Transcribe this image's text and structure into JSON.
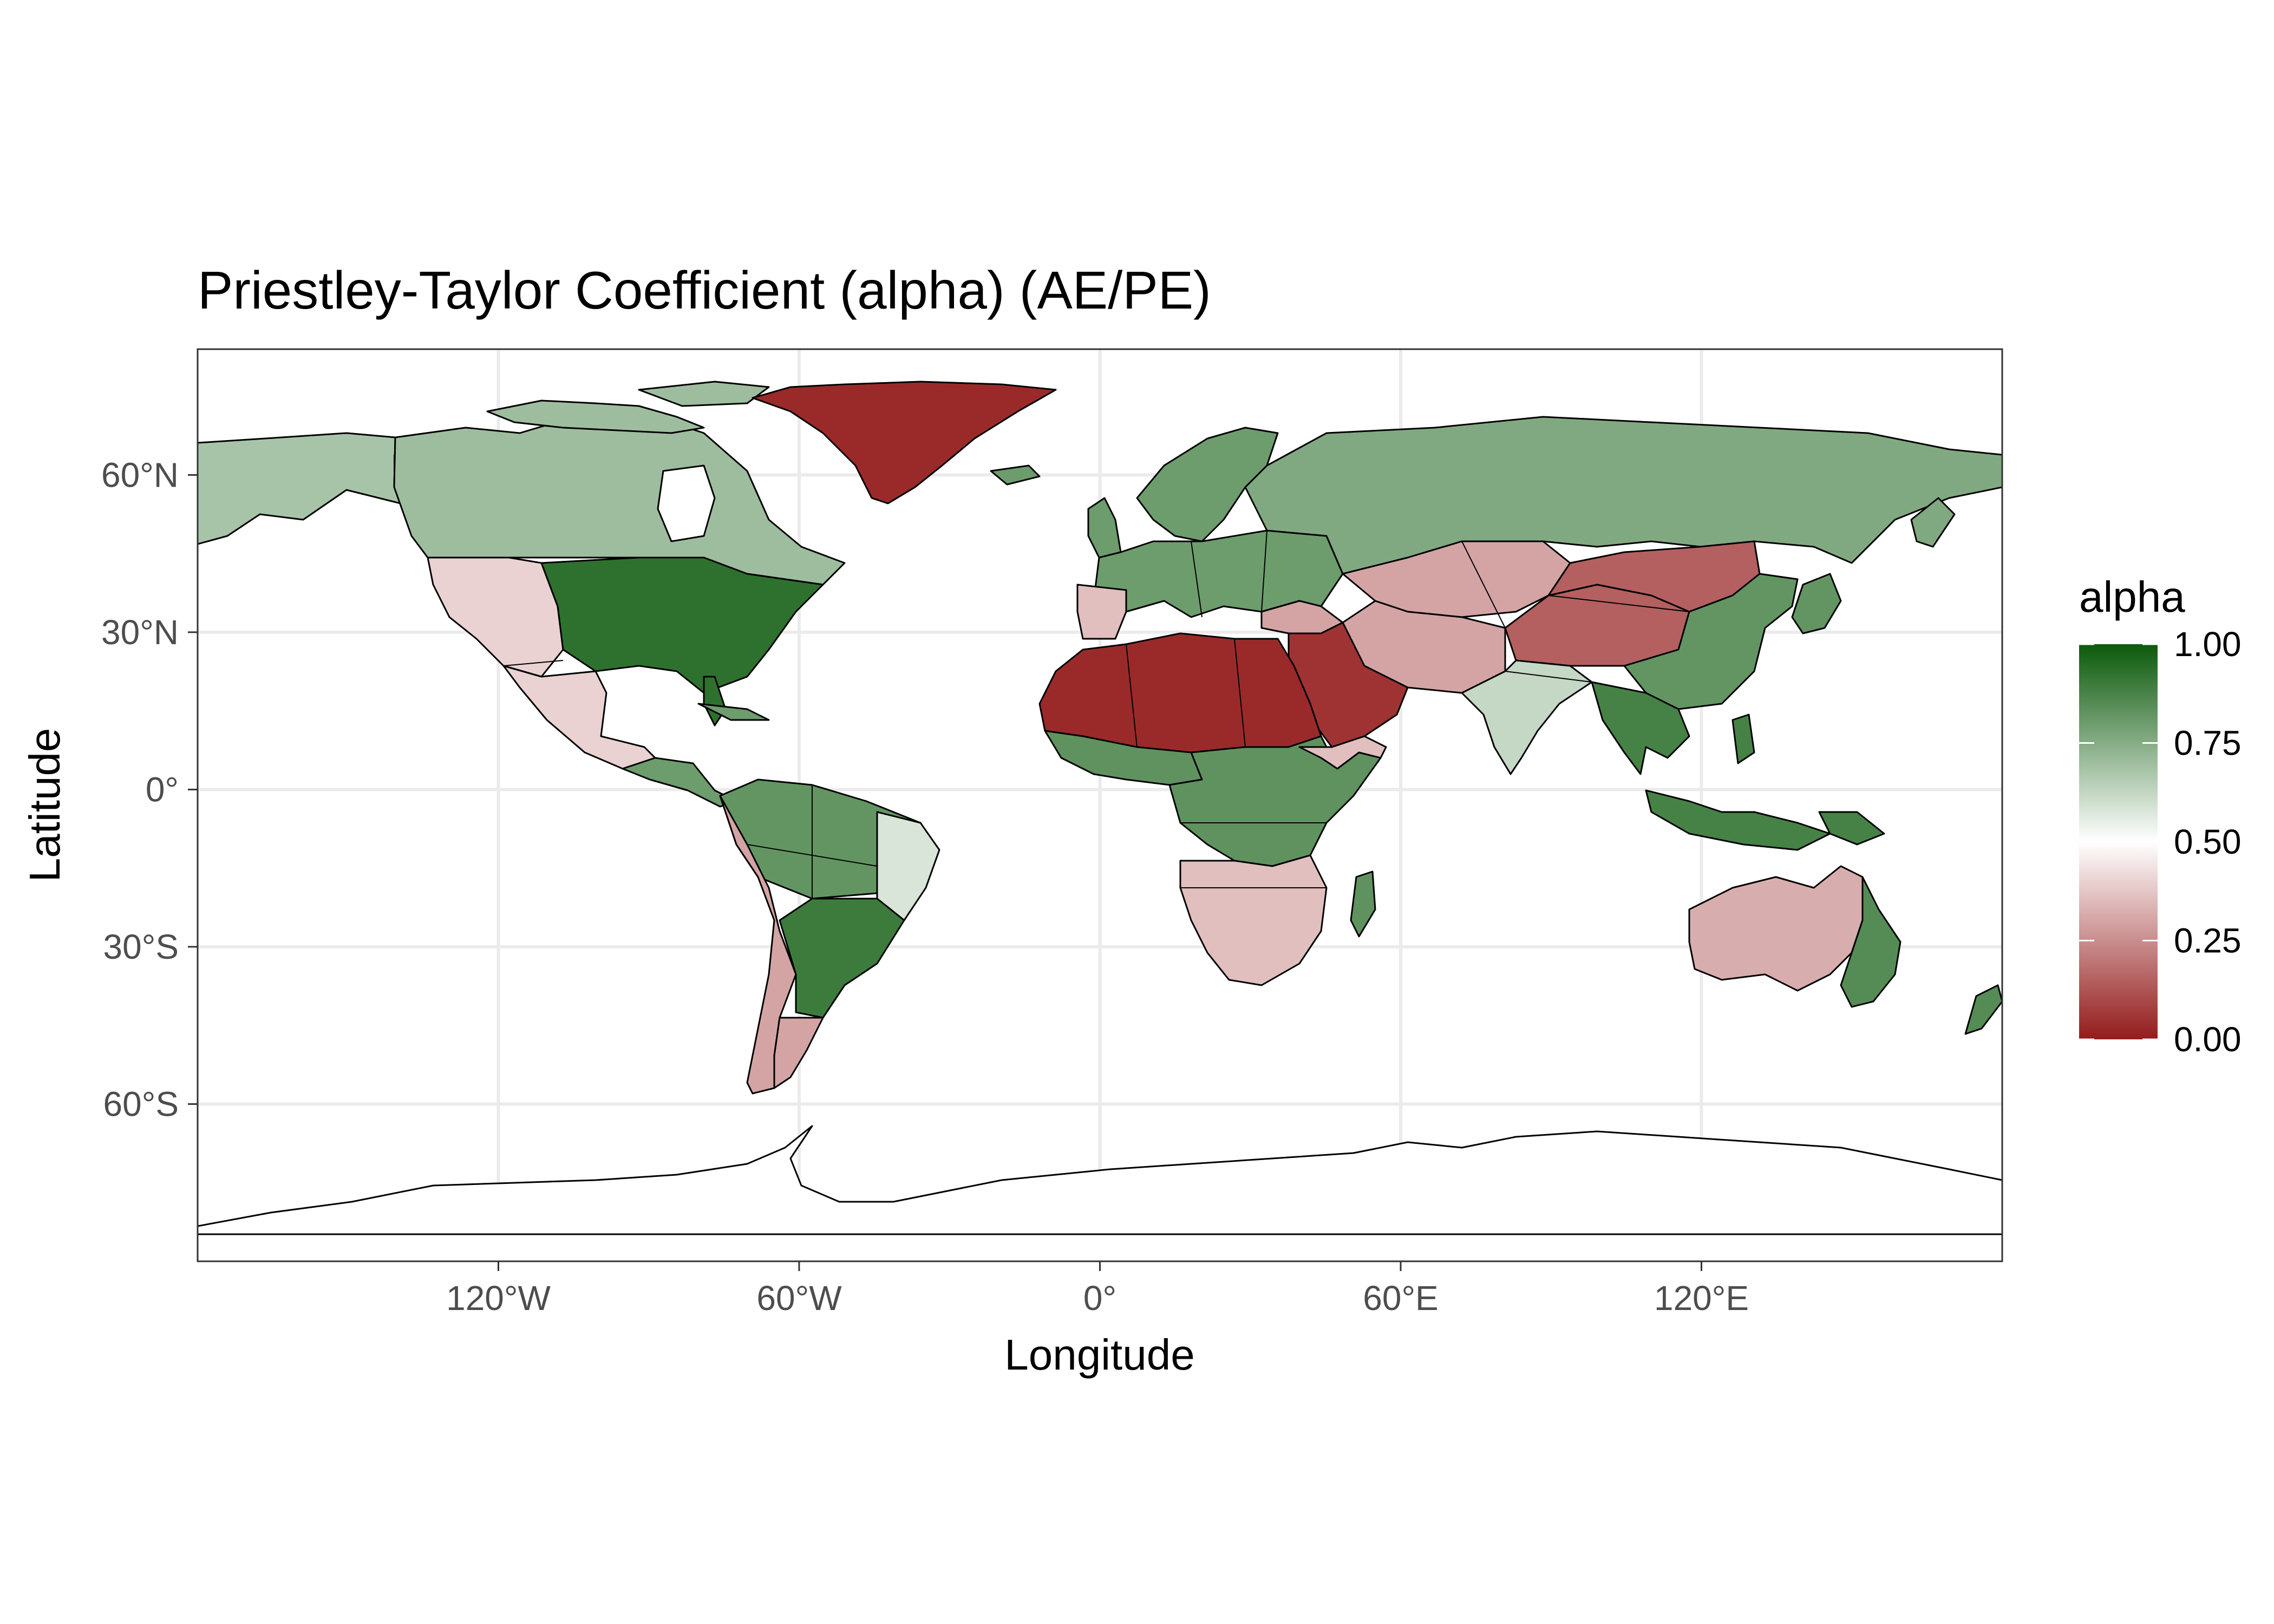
{
  "chart_data": {
    "type": "heatmap",
    "title": "Priestley-Taylor Coefficient (alpha) (AE/PE)",
    "xlabel": "Longitude",
    "ylabel": "Latitude",
    "xlim": [
      -180,
      180
    ],
    "ylim": [
      -90,
      84
    ],
    "x_ticks": [
      {
        "value": -120,
        "label": "120°W"
      },
      {
        "value": -60,
        "label": "60°W"
      },
      {
        "value": 0,
        "label": "0°"
      },
      {
        "value": 60,
        "label": "60°E"
      },
      {
        "value": 120,
        "label": "120°E"
      }
    ],
    "y_ticks": [
      {
        "value": 60,
        "label": "60°N"
      },
      {
        "value": 30,
        "label": "30°N"
      },
      {
        "value": 0,
        "label": "0°"
      },
      {
        "value": -30,
        "label": "30°S"
      },
      {
        "value": -60,
        "label": "60°S"
      }
    ],
    "grid": true,
    "legend": {
      "title": "alpha",
      "position": "right",
      "range": [
        0,
        1
      ],
      "ticks": [
        {
          "value": 1.0,
          "label": "1.00"
        },
        {
          "value": 0.75,
          "label": "0.75"
        },
        {
          "value": 0.5,
          "label": "0.50"
        },
        {
          "value": 0.25,
          "label": "0.25"
        },
        {
          "value": 0.0,
          "label": "0.00"
        }
      ],
      "colors": {
        "low": "#941c1c",
        "mid": "#ffffff",
        "high": "#0c5a0c"
      }
    },
    "regions": [
      {
        "name": "Greenland",
        "value": 0.03
      },
      {
        "name": "Canada",
        "value": 0.7
      },
      {
        "name": "Alaska",
        "value": 0.68
      },
      {
        "name": "Eastern United States",
        "value": 0.93
      },
      {
        "name": "Western United States",
        "value": 0.4
      },
      {
        "name": "Central America",
        "value": 0.8
      },
      {
        "name": "Amazon",
        "value": 0.82
      },
      {
        "name": "Eastern Brazil",
        "value": 0.58
      },
      {
        "name": "Atacama and Patagonia",
        "value": 0.3
      },
      {
        "name": "Pampas",
        "value": 0.9
      },
      {
        "name": "Europe",
        "value": 0.8
      },
      {
        "name": "Siberia",
        "value": 0.76
      },
      {
        "name": "Sahara",
        "value": 0.03
      },
      {
        "name": "Arabian Peninsula",
        "value": 0.05
      },
      {
        "name": "Central Africa",
        "value": 0.83
      },
      {
        "name": "Southern Africa",
        "value": 0.36
      },
      {
        "name": "Central Asia",
        "value": 0.3
      },
      {
        "name": "Tibet and Gobi",
        "value": 0.15
      },
      {
        "name": "India",
        "value": 0.62
      },
      {
        "name": "Eastern China",
        "value": 0.82
      },
      {
        "name": "Southeast Asia",
        "value": 0.88
      },
      {
        "name": "Australia interior",
        "value": 0.32
      },
      {
        "name": "Australia east coast",
        "value": 0.85
      }
    ]
  }
}
